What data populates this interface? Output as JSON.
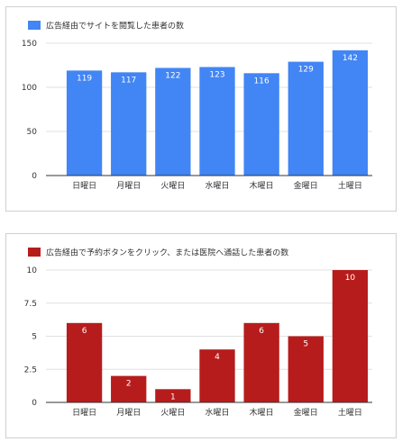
{
  "chart_data": [
    {
      "type": "bar",
      "legend": "広告経由でサイトを閲覧した患者の数",
      "legend_position": "top-left",
      "color": "#4285f4",
      "categories": [
        "日曜日",
        "月曜日",
        "火曜日",
        "水曜日",
        "木曜日",
        "金曜日",
        "土曜日"
      ],
      "values": [
        119,
        117,
        122,
        123,
        116,
        129,
        142
      ],
      "yticks": [
        "0",
        "50",
        "100",
        "150"
      ],
      "ylim": [
        0,
        150
      ],
      "grid": true
    },
    {
      "type": "bar",
      "legend": "広告経由で予約ボタンをクリック、または医院へ通話した患者の数",
      "legend_position": "top-left",
      "color": "#b71c1c",
      "categories": [
        "日曜日",
        "月曜日",
        "火曜日",
        "水曜日",
        "木曜日",
        "金曜日",
        "土曜日"
      ],
      "values": [
        6,
        2,
        1,
        4,
        6,
        5,
        10
      ],
      "yticks": [
        "0",
        "2.5",
        "5",
        "7.5",
        "10"
      ],
      "ylim": [
        0,
        10
      ],
      "grid": true
    }
  ]
}
